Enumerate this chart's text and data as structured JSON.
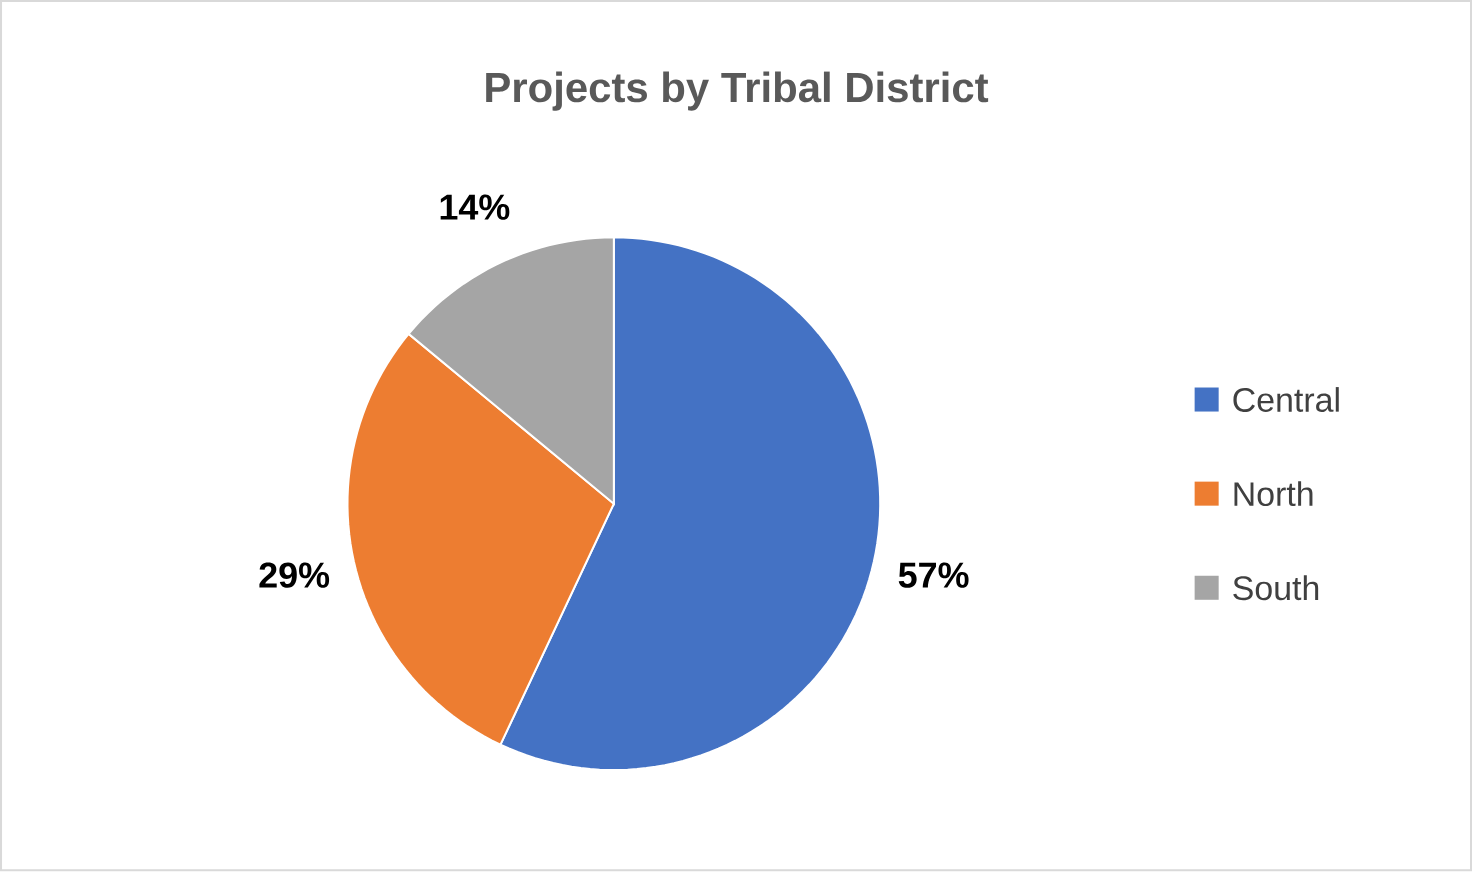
{
  "chart_data": {
    "type": "pie",
    "title": "Projects by Tribal District",
    "categories": [
      "Central",
      "North",
      "South"
    ],
    "values": [
      57,
      29,
      14
    ],
    "value_labels": [
      "57%",
      "29%",
      "14%"
    ],
    "colors": [
      "#4472c4",
      "#ed7d31",
      "#a5a5a5"
    ],
    "legend": "right"
  }
}
